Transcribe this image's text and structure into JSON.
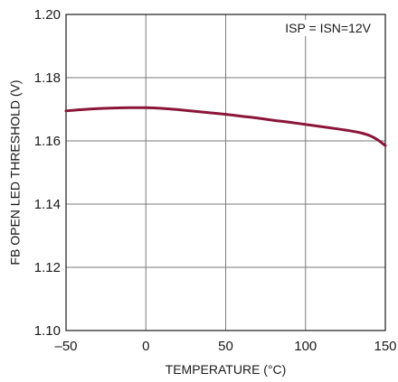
{
  "chart_data": {
    "type": "line",
    "title": "",
    "xlabel": "TEMPERATURE (°C)",
    "ylabel": "FB OPEN LED THRESHOLD (V)",
    "xlim": [
      -50,
      150
    ],
    "ylim": [
      1.1,
      1.2
    ],
    "x_ticks": [
      -50,
      0,
      50,
      100,
      150
    ],
    "x_tick_labels": [
      "–50",
      "0",
      "50",
      "100",
      "150"
    ],
    "y_ticks": [
      1.1,
      1.12,
      1.14,
      1.16,
      1.18,
      1.2
    ],
    "y_tick_labels": [
      "1.10",
      "1.12",
      "1.14",
      "1.16",
      "1.18",
      "1.20"
    ],
    "grid": true,
    "annotation": "ISP = ISN=12V",
    "line_color": "#8b1538",
    "series": [
      {
        "x": [
          -50,
          -40,
          -30,
          -20,
          -10,
          0,
          10,
          20,
          30,
          40,
          50,
          60,
          70,
          80,
          90,
          100,
          110,
          120,
          130,
          135,
          140,
          145,
          150
        ],
        "y": [
          1.1695,
          1.1699,
          1.1702,
          1.1704,
          1.1705,
          1.1705,
          1.1703,
          1.1699,
          1.1694,
          1.1689,
          1.1684,
          1.1678,
          1.1672,
          1.1665,
          1.1659,
          1.1652,
          1.1645,
          1.1638,
          1.163,
          1.1625,
          1.1617,
          1.1604,
          1.1585
        ]
      }
    ]
  }
}
